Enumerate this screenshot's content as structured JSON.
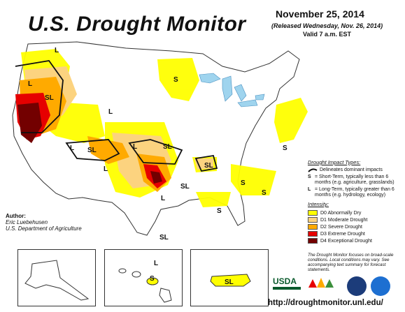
{
  "header": {
    "title": "U.S. Drought Monitor",
    "date": "November 25, 2014",
    "released": "(Released Wednesday, Nov. 26, 2014)",
    "valid": "Valid 7 a.m. EST"
  },
  "map_labels": {
    "short_term": "S",
    "long_term": "L",
    "both": "SL"
  },
  "legend": {
    "impact_header": "Drought Impact Types:",
    "impact_items": [
      {
        "key": "",
        "text": "Delineates dominant impacts"
      },
      {
        "key": "S",
        "text": "= Short-Term, typically less than 6 months (e.g. agriculture, grasslands)"
      },
      {
        "key": "L",
        "text": "= Long-Term, typically greater than 6 months (e.g. hydrology, ecology)"
      }
    ],
    "intensity_header": "Intensity:",
    "intensity_items": [
      {
        "label": "D0 Abnormally Dry",
        "color": "#ffff00"
      },
      {
        "label": "D1 Moderate Drought",
        "color": "#fcd37f"
      },
      {
        "label": "D2 Severe Drought",
        "color": "#ffaa00"
      },
      {
        "label": "D3 Extreme Drought",
        "color": "#e60000"
      },
      {
        "label": "D4 Exceptional Drought",
        "color": "#730000"
      }
    ]
  },
  "author": {
    "label": "Author:",
    "name": "Eric Luebehusen",
    "org": "U.S. Department of Agriculture"
  },
  "note": "The Drought Monitor focuses on broad-scale conditions. Local conditions may vary. See accompanying text summary for forecast statements.",
  "logos": {
    "usda": "USDA",
    "ndmc": "National Drought Mitigation Center"
  },
  "url": "http://droughtmonitor.unl.edu/",
  "colors": {
    "water": "#9fd4ee",
    "d0": "#ffff00",
    "d1": "#fcd37f",
    "d2": "#ffaa00",
    "d3": "#e60000",
    "d4": "#730000"
  }
}
